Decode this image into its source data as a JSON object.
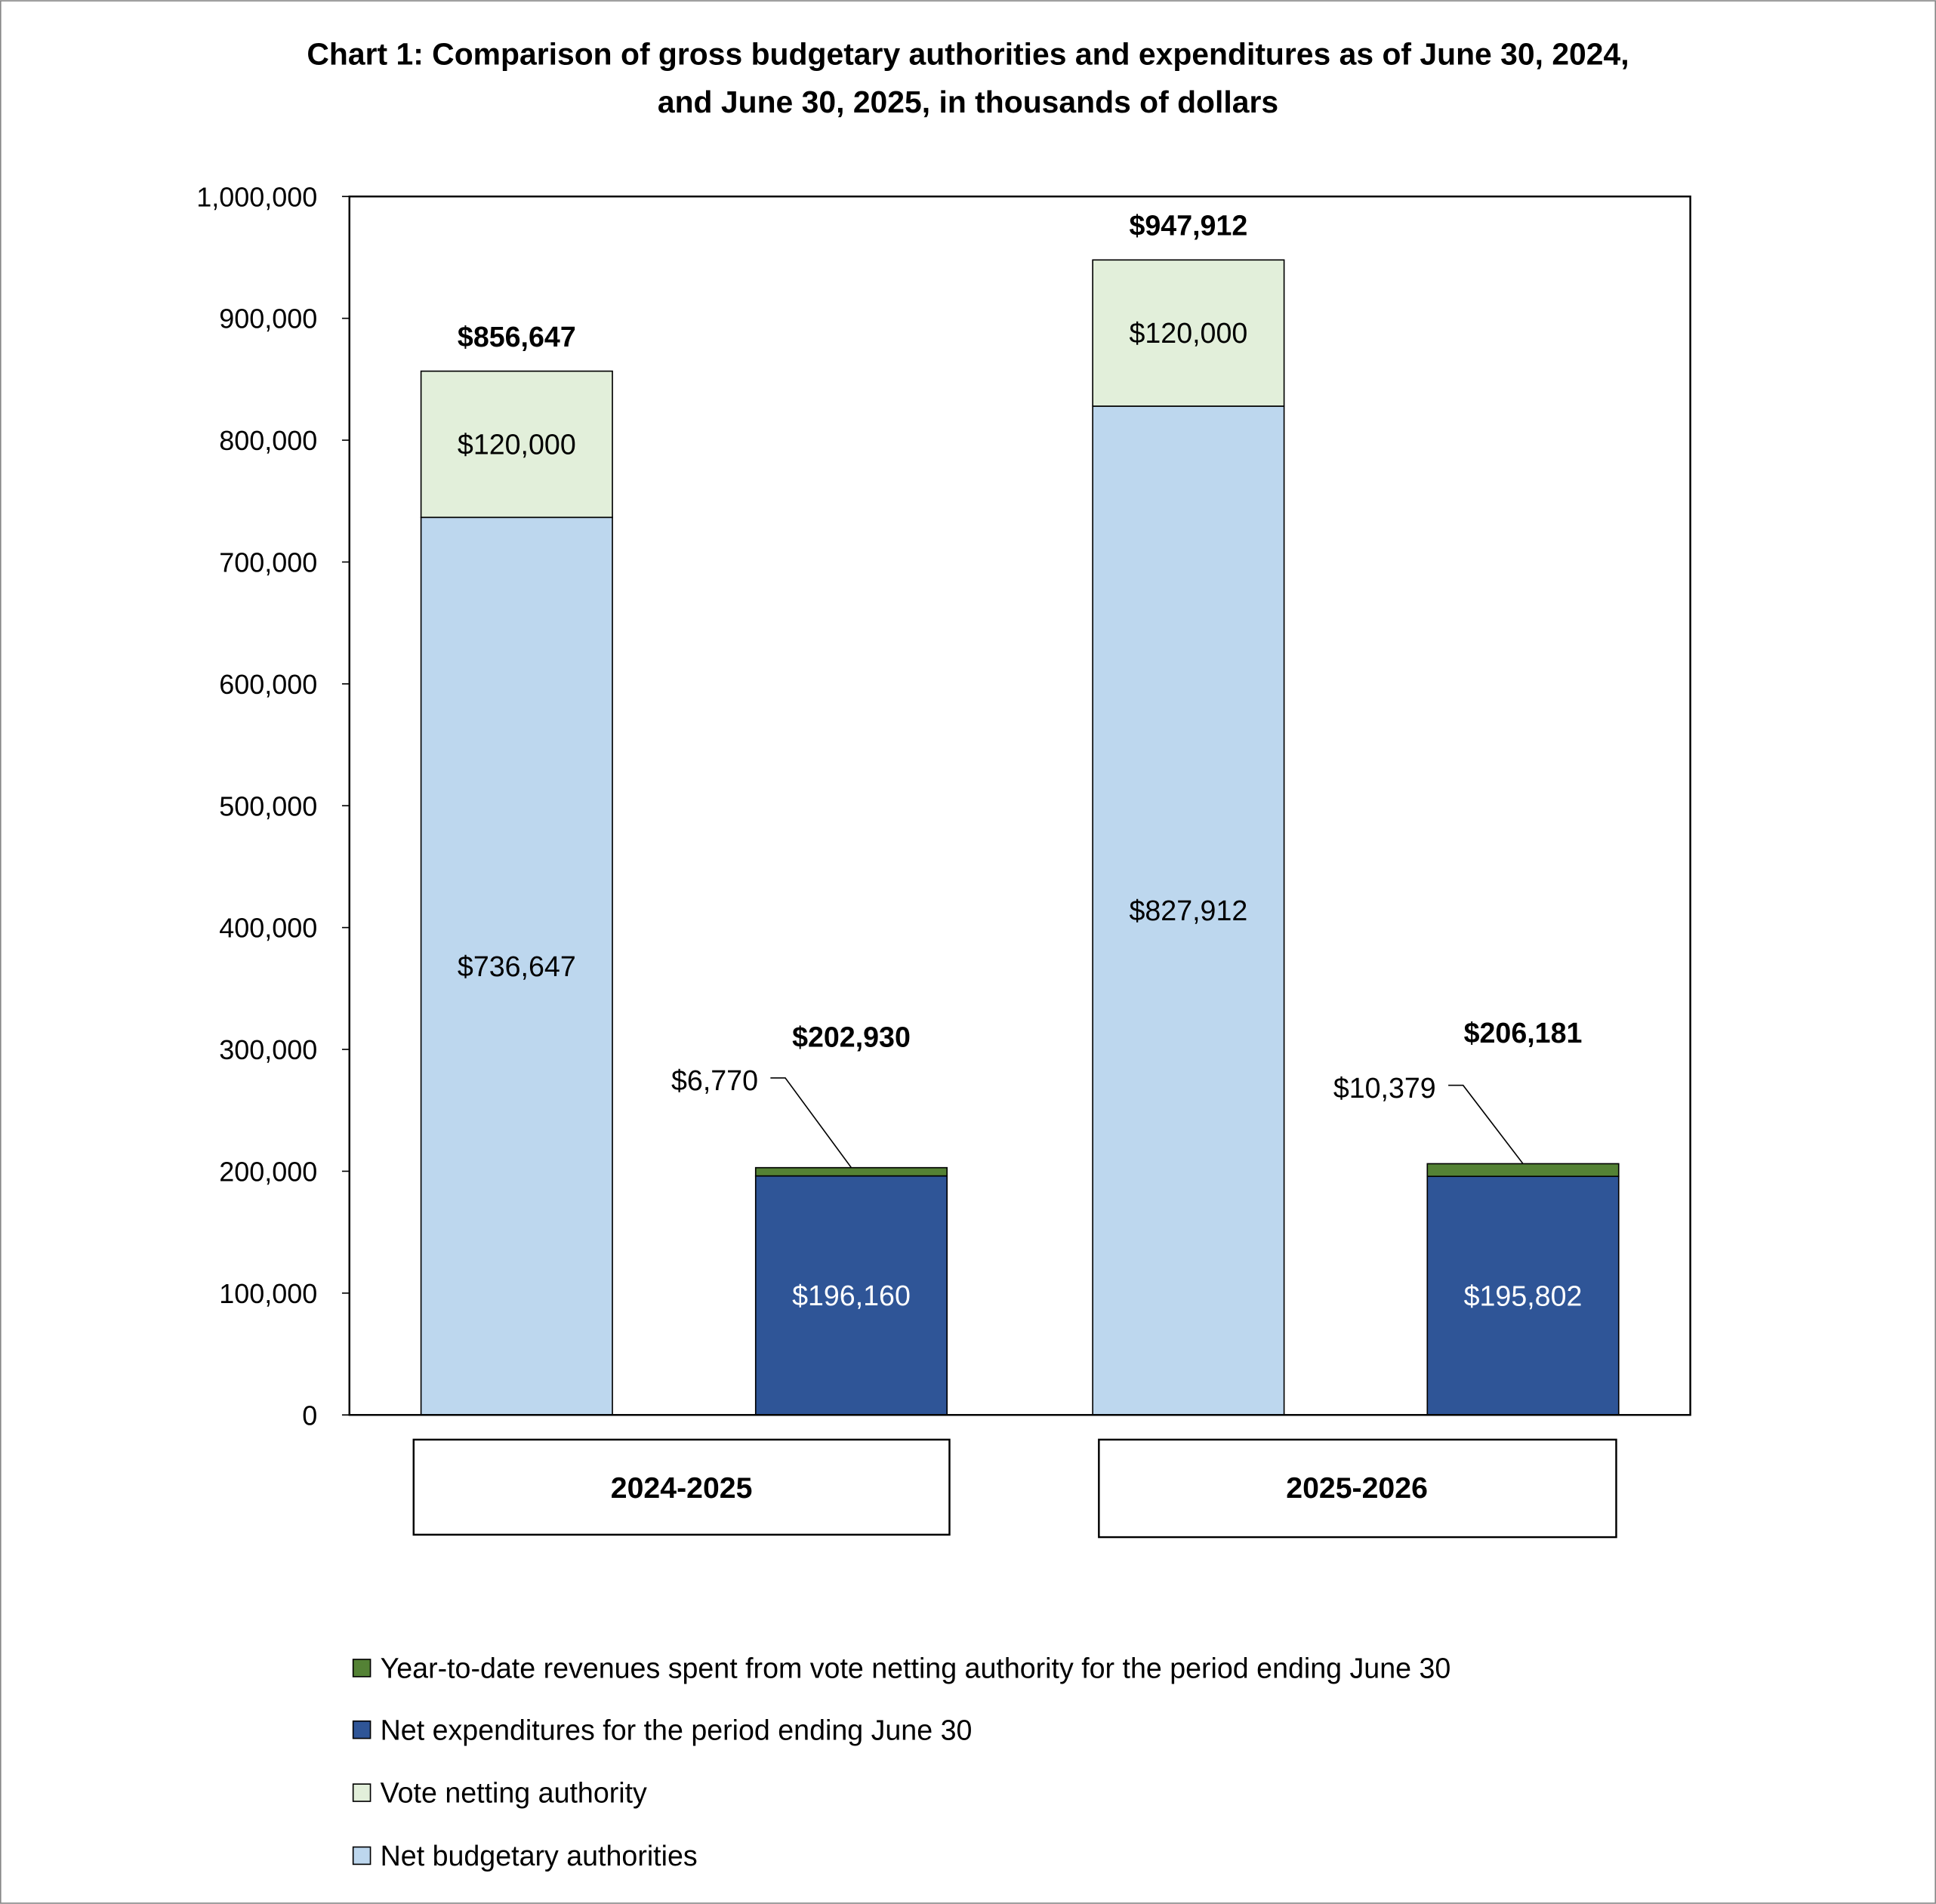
{
  "chart_data": {
    "type": "bar",
    "stacked": true,
    "title": "Chart 1: Comparison of gross budgetary authorities and expenditures as of June 30, 2024, and June 30, 2025, in thousands of dollars",
    "title_lines": [
      "Chart 1: Comparison of gross budgetary authorities and expenditures as of June 30, 2024,",
      "and June 30, 2025, in thousands of dollars"
    ],
    "xlabel": "",
    "ylabel": "",
    "ylim": [
      0,
      1000000
    ],
    "yticks": [
      0,
      100000,
      200000,
      300000,
      400000,
      500000,
      600000,
      700000,
      800000,
      900000,
      1000000
    ],
    "ytick_labels": [
      "0",
      "100,000",
      "200,000",
      "300,000",
      "400,000",
      "500,000",
      "600,000",
      "700,000",
      "800,000",
      "900,000",
      "1,000,000"
    ],
    "grid": false,
    "legend_position": "bottom",
    "categories": [
      "2024-2025",
      "2025-2026"
    ],
    "series": [
      {
        "name": "Net budgetary authorities",
        "color": "#BDD7EE"
      },
      {
        "name": "Vote netting authority",
        "color": "#E2EFDA"
      },
      {
        "name": "Net expenditures for the period ending June 30",
        "color": "#2F5597"
      },
      {
        "name": "Year-to-date revenues spent from vote netting authority for the period ending June 30",
        "color": "#548235"
      }
    ],
    "bars": [
      {
        "category": "2024-2025",
        "kind": "authorities",
        "segments": [
          {
            "series": "Net budgetary authorities",
            "value": 736647,
            "label": "$736,647"
          },
          {
            "series": "Vote netting authority",
            "value": 120000,
            "label": "$120,000"
          }
        ],
        "total": 856647,
        "total_label": "$856,647"
      },
      {
        "category": "2024-2025",
        "kind": "expenditures",
        "segments": [
          {
            "series": "Net expenditures for the period ending June 30",
            "value": 196160,
            "label": "$196,160"
          },
          {
            "series": "Year-to-date revenues spent from vote netting authority for the period ending June 30",
            "value": 6770,
            "label": "$6,770"
          }
        ],
        "total": 202930,
        "total_label": "$202,930"
      },
      {
        "category": "2025-2026",
        "kind": "authorities",
        "segments": [
          {
            "series": "Net budgetary authorities",
            "value": 827912,
            "label": "$827,912"
          },
          {
            "series": "Vote netting authority",
            "value": 120000,
            "label": "$120,000"
          }
        ],
        "total": 947912,
        "total_label": "$947,912"
      },
      {
        "category": "2025-2026",
        "kind": "expenditures",
        "segments": [
          {
            "series": "Net expenditures for the period ending June 30",
            "value": 195802,
            "label": "$195,802"
          },
          {
            "series": "Year-to-date revenues spent from vote netting authority for the period ending June 30",
            "value": 10379,
            "label": "$10,379"
          }
        ],
        "total": 206181,
        "total_label": "$206,181"
      }
    ],
    "legend_order": [
      "Year-to-date revenues spent from vote netting authority for the period ending June 30",
      "Net expenditures for the period ending June 30",
      "Vote netting authority",
      "Net budgetary authorities"
    ]
  }
}
